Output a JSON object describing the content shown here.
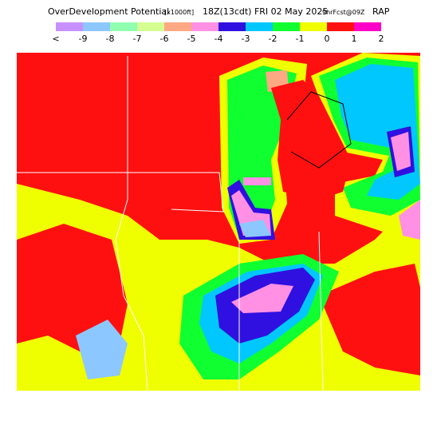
{
  "header": {
    "title": "OverDevelopment Potential",
    "units": "[x1000ft]",
    "valid": "18Z(13cdt) FRI 02 May 2025",
    "forecast": "9hrFcst@09Z",
    "model": "RAP"
  },
  "legend": {
    "labels": [
      "<",
      "-9",
      "-8",
      "-7",
      "-6",
      "-5",
      "-4",
      "-3",
      "-2",
      "-1",
      "0",
      "1",
      "2"
    ],
    "colors": [
      "#c890ff",
      "#8cc8ff",
      "#90ffb0",
      "#d4ff90",
      "#ffa884",
      "#ff90e4",
      "#3010e0",
      "#00c8ff",
      "#10ff30",
      "#f0ff00",
      "#ff1010",
      "#ff00c8"
    ]
  }
}
